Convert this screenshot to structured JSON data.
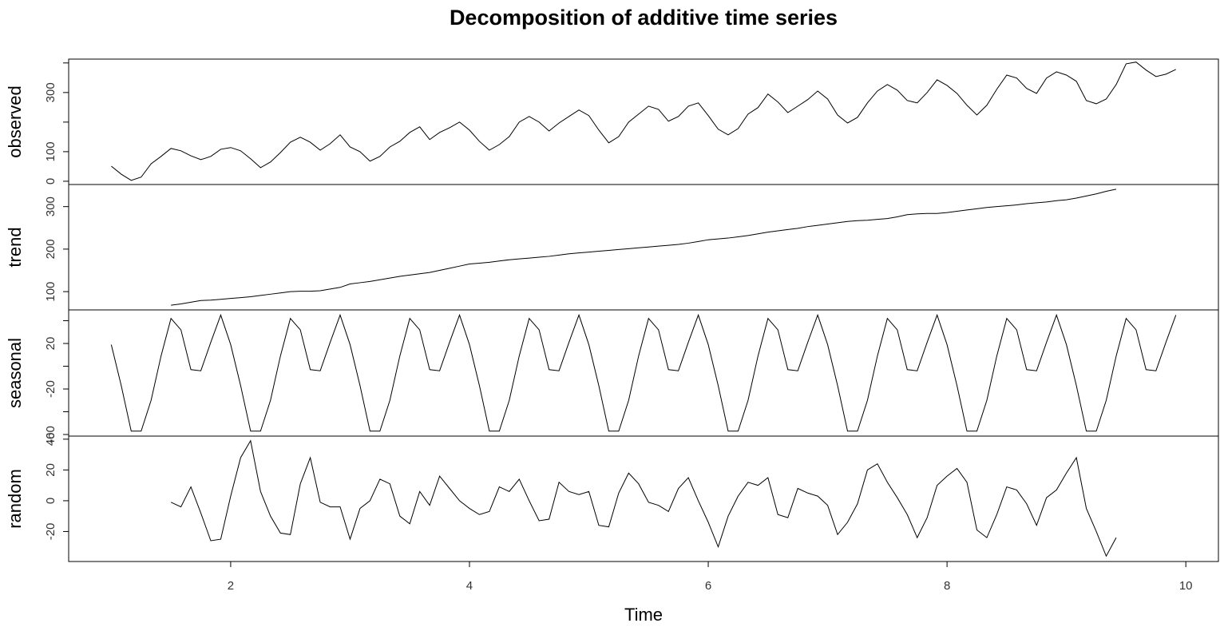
{
  "chart_data": {
    "type": "line",
    "title": "Decomposition of additive time series",
    "xlabel": "Time",
    "color": "#000000",
    "x": [
      1,
      1.0833,
      1.1667,
      1.25,
      1.3333,
      1.4167,
      1.5,
      1.5833,
      1.6667,
      1.75,
      1.8333,
      1.9167,
      2,
      2.0833,
      2.1667,
      2.25,
      2.3333,
      2.4167,
      2.5,
      2.5833,
      2.6667,
      2.75,
      2.8333,
      2.9167,
      3,
      3.0833,
      3.1667,
      3.25,
      3.3333,
      3.4167,
      3.5,
      3.5833,
      3.6667,
      3.75,
      3.8333,
      3.9167,
      4,
      4.0833,
      4.1667,
      4.25,
      4.3333,
      4.4167,
      4.5,
      4.5833,
      4.6667,
      4.75,
      4.8333,
      4.9167,
      5,
      5.0833,
      5.1667,
      5.25,
      5.3333,
      5.4167,
      5.5,
      5.5833,
      5.6667,
      5.75,
      5.8333,
      5.9167,
      6,
      6.0833,
      6.1667,
      6.25,
      6.3333,
      6.4167,
      6.5,
      6.5833,
      6.6667,
      6.75,
      6.8333,
      6.9167,
      7,
      7.0833,
      7.1667,
      7.25,
      7.3333,
      7.4167,
      7.5,
      7.5833,
      7.6667,
      7.75,
      7.8333,
      7.9167,
      8,
      8.0833,
      8.1667,
      8.25,
      8.3333,
      8.4167,
      8.5,
      8.5833,
      8.6667,
      8.75,
      8.8333,
      8.9167,
      9,
      9.0833,
      9.1667,
      9.25,
      9.3333,
      9.4167,
      9.5,
      9.5833,
      9.6667,
      9.75,
      9.8333,
      9.9167
    ],
    "xlim": [
      0.643,
      10.273
    ],
    "xticks": [
      2,
      4,
      6,
      8,
      10
    ],
    "panels": [
      {
        "ylabel": "observed",
        "ylim": [
          -11,
          413
        ],
        "yticks": [
          0,
          100,
          300
        ],
        "minor_yticks": [
          200,
          400
        ],
        "values": [
          51,
          24,
          3,
          14,
          59,
          84,
          111,
          103,
          86,
          73,
          84,
          108,
          114,
          103,
          76,
          46,
          65,
          97,
          132,
          149,
          132,
          105,
          127,
          157,
          116,
          100,
          68,
          84,
          116,
          135,
          165,
          184,
          141,
          165,
          181,
          200,
          173,
          135,
          105,
          124,
          151,
          200,
          219,
          200,
          170,
          197,
          219,
          241,
          222,
          173,
          130,
          151,
          200,
          227,
          254,
          243,
          203,
          219,
          254,
          265,
          222,
          176,
          157,
          178,
          227,
          249,
          295,
          268,
          232,
          254,
          276,
          305,
          278,
          224,
          197,
          216,
          265,
          305,
          327,
          308,
          273,
          265,
          300,
          343,
          324,
          297,
          257,
          224,
          257,
          311,
          359,
          349,
          314,
          297,
          349,
          370,
          359,
          338,
          273,
          262,
          278,
          327,
          397,
          403,
          376,
          354,
          362,
          378
        ]
      },
      {
        "ylabel": "trend",
        "ylim": [
          57,
          352
        ],
        "yticks": [
          100,
          200,
          300
        ],
        "values": [
          null,
          null,
          null,
          null,
          null,
          null,
          68,
          71,
          75,
          79,
          80,
          82,
          84,
          86,
          88,
          91,
          94,
          97,
          100,
          101,
          101,
          102,
          106,
          110,
          118,
          121,
          124,
          128,
          132,
          136,
          139,
          142,
          145,
          150,
          155,
          160,
          165,
          167,
          169,
          172,
          175,
          177,
          179,
          181,
          183,
          186,
          189,
          191,
          193,
          195,
          197,
          199,
          201,
          203,
          205,
          207,
          209,
          211,
          214,
          218,
          222,
          224,
          226,
          229,
          232,
          236,
          240,
          243,
          246,
          249,
          253,
          256,
          259,
          262,
          265,
          267,
          268,
          270,
          272,
          276,
          281,
          283,
          284,
          284,
          286,
          289,
          292,
          295,
          298,
          300,
          302,
          304,
          307,
          309,
          311,
          314,
          316,
          320,
          325,
          330,
          336,
          341,
          null,
          null,
          null,
          null,
          null,
          null
        ]
      },
      {
        "ylabel": "seasonal",
        "ylim": [
          -61.4,
          49.5
        ],
        "yticks": [
          -60,
          -20,
          20
        ],
        "minor_yticks": [
          -40,
          0,
          40
        ],
        "values": [
          19,
          -17,
          -57,
          -57,
          -30,
          9,
          42,
          32,
          -3,
          -4,
          21,
          45,
          19,
          -17,
          -57,
          -57,
          -30,
          9,
          42,
          32,
          -3,
          -4,
          21,
          45,
          19,
          -17,
          -57,
          -57,
          -30,
          9,
          42,
          32,
          -3,
          -4,
          21,
          45,
          19,
          -17,
          -57,
          -57,
          -30,
          9,
          42,
          32,
          -3,
          -4,
          21,
          45,
          19,
          -17,
          -57,
          -57,
          -30,
          9,
          42,
          32,
          -3,
          -4,
          21,
          45,
          19,
          -17,
          -57,
          -57,
          -30,
          9,
          42,
          32,
          -3,
          -4,
          21,
          45,
          19,
          -17,
          -57,
          -57,
          -30,
          9,
          42,
          32,
          -3,
          -4,
          21,
          45,
          19,
          -17,
          -57,
          -57,
          -30,
          9,
          42,
          32,
          -3,
          -4,
          21,
          45,
          19,
          -17,
          -57,
          -57,
          -30,
          9,
          42,
          32,
          -3,
          -4,
          21,
          45
        ]
      },
      {
        "ylabel": "random",
        "ylim": [
          -39.5,
          42
        ],
        "yticks": [
          -20,
          0,
          20,
          40
        ],
        "values": [
          null,
          null,
          null,
          null,
          null,
          null,
          -1,
          -4,
          9,
          -8,
          -26,
          -25,
          3,
          28,
          39,
          6,
          -10,
          -21,
          -22,
          11,
          28,
          -1,
          -4,
          -4,
          -25,
          -5,
          0,
          14,
          11,
          -10,
          -15,
          6,
          -3,
          16,
          8,
          0,
          -5,
          -9,
          -7,
          9,
          6,
          14,
          0,
          -13,
          -12,
          12,
          6,
          4,
          6,
          -16,
          -17,
          5,
          18,
          11,
          -1,
          -3,
          -7,
          8,
          15,
          0,
          -14,
          -30,
          -10,
          3,
          12,
          10,
          15,
          -9,
          -11,
          8,
          5,
          3,
          -3,
          -22,
          -14,
          -2,
          20,
          24,
          12,
          2,
          -9,
          -24,
          -11,
          10,
          16,
          21,
          12,
          -19,
          -24,
          -9,
          9,
          7,
          -2,
          -16,
          2,
          7,
          18,
          28,
          -5,
          -20,
          -36,
          -24,
          null,
          null,
          null,
          null,
          null,
          null
        ]
      }
    ]
  }
}
